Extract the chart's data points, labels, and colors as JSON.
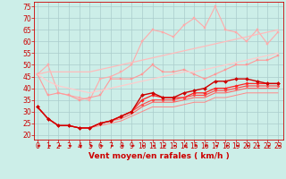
{
  "background_color": "#cceee8",
  "grid_color": "#aacccc",
  "xlabel": "Vent moyen/en rafales ( km/h )",
  "xlabel_color": "#cc0000",
  "xlabel_fontsize": 6.5,
  "xticks": [
    0,
    1,
    2,
    3,
    4,
    5,
    6,
    7,
    8,
    9,
    10,
    11,
    12,
    13,
    14,
    15,
    16,
    17,
    18,
    19,
    20,
    21,
    22,
    23
  ],
  "yticks": [
    20,
    25,
    30,
    35,
    40,
    45,
    50,
    55,
    60,
    65,
    70,
    75
  ],
  "ylim": [
    18,
    77
  ],
  "xlim": [
    -0.3,
    23.5
  ],
  "tick_color": "#cc0000",
  "tick_fontsize": 5.5,
  "series": [
    {
      "x": [
        0,
        1,
        2,
        3,
        4,
        5,
        6,
        7,
        8,
        9,
        10,
        11,
        12,
        13,
        14,
        15,
        16,
        17,
        18,
        19,
        20,
        21,
        22,
        23
      ],
      "y": [
        46,
        50,
        38,
        37,
        36,
        35,
        44,
        45,
        47,
        50,
        60,
        65,
        64,
        62,
        67,
        70,
        66,
        75,
        65,
        64,
        60,
        65,
        59,
        64
      ],
      "color": "#ffaaaa",
      "marker": "s",
      "markersize": 1.8,
      "linewidth": 0.8,
      "zorder": 2
    },
    {
      "x": [
        0,
        1,
        2,
        3,
        4,
        5,
        6,
        7,
        8,
        9,
        10,
        11,
        12,
        13,
        14,
        15,
        16,
        17,
        18,
        19,
        20,
        21,
        22,
        23
      ],
      "y": [
        46,
        47,
        47,
        47,
        47,
        47,
        48,
        49,
        50,
        51,
        52,
        53,
        54,
        55,
        56,
        57,
        58,
        59,
        60,
        61,
        62,
        63,
        64,
        65
      ],
      "color": "#ffbbbb",
      "marker": null,
      "markersize": 0,
      "linewidth": 0.9,
      "zorder": 2
    },
    {
      "x": [
        0,
        1,
        2,
        3,
        4,
        5,
        6,
        7,
        8,
        9,
        10,
        11,
        12,
        13,
        14,
        15,
        16,
        17,
        18,
        19,
        20,
        21,
        22,
        23
      ],
      "y": [
        46,
        37,
        38,
        37,
        35,
        36,
        37,
        44,
        44,
        44,
        46,
        50,
        47,
        47,
        48,
        46,
        44,
        46,
        48,
        50,
        50,
        52,
        52,
        54
      ],
      "color": "#ff9999",
      "marker": "s",
      "markersize": 1.8,
      "linewidth": 0.8,
      "zorder": 2
    },
    {
      "x": [
        0,
        1,
        2,
        3,
        4,
        5,
        6,
        7,
        8,
        9,
        10,
        11,
        12,
        13,
        14,
        15,
        16,
        17,
        18,
        19,
        20,
        21,
        22,
        23
      ],
      "y": [
        46,
        43,
        41,
        40,
        39,
        38,
        39,
        40,
        41,
        42,
        43,
        44,
        45,
        46,
        47,
        47,
        48,
        49,
        50,
        51,
        52,
        53,
        54,
        55
      ],
      "color": "#ffcccc",
      "marker": null,
      "markersize": 0,
      "linewidth": 0.9,
      "zorder": 2
    },
    {
      "x": [
        0,
        1,
        2,
        3,
        4,
        5,
        6,
        7,
        8,
        9,
        10,
        11,
        12,
        13,
        14,
        15,
        16,
        17,
        18,
        19,
        20,
        21,
        22,
        23
      ],
      "y": [
        32,
        27,
        24,
        24,
        23,
        23,
        25,
        26,
        28,
        30,
        37,
        38,
        36,
        36,
        38,
        39,
        40,
        43,
        43,
        44,
        44,
        43,
        42,
        42
      ],
      "color": "#cc0000",
      "marker": "D",
      "markersize": 2.0,
      "linewidth": 1.0,
      "zorder": 5
    },
    {
      "x": [
        0,
        1,
        2,
        3,
        4,
        5,
        6,
        7,
        8,
        9,
        10,
        11,
        12,
        13,
        14,
        15,
        16,
        17,
        18,
        19,
        20,
        21,
        22,
        23
      ],
      "y": [
        32,
        27,
        24,
        24,
        23,
        23,
        25,
        26,
        28,
        30,
        35,
        37,
        36,
        36,
        36,
        38,
        38,
        40,
        40,
        41,
        42,
        42,
        42,
        42
      ],
      "color": "#ff2222",
      "marker": "D",
      "markersize": 1.8,
      "linewidth": 0.9,
      "zorder": 4
    },
    {
      "x": [
        0,
        1,
        2,
        3,
        4,
        5,
        6,
        7,
        8,
        9,
        10,
        11,
        12,
        13,
        14,
        15,
        16,
        17,
        18,
        19,
        20,
        21,
        22,
        23
      ],
      "y": [
        32,
        27,
        24,
        24,
        23,
        23,
        25,
        26,
        28,
        30,
        33,
        35,
        35,
        35,
        36,
        37,
        37,
        39,
        39,
        40,
        41,
        41,
        41,
        41
      ],
      "color": "#ff4444",
      "marker": "D",
      "markersize": 1.5,
      "linewidth": 0.8,
      "zorder": 4
    },
    {
      "x": [
        0,
        1,
        2,
        3,
        4,
        5,
        6,
        7,
        8,
        9,
        10,
        11,
        12,
        13,
        14,
        15,
        16,
        17,
        18,
        19,
        20,
        21,
        22,
        23
      ],
      "y": [
        32,
        27,
        24,
        24,
        23,
        23,
        25,
        26,
        27,
        29,
        32,
        34,
        34,
        34,
        35,
        36,
        36,
        38,
        38,
        39,
        40,
        40,
        40,
        40
      ],
      "color": "#ff6666",
      "marker": null,
      "markersize": 0,
      "linewidth": 0.8,
      "zorder": 3
    },
    {
      "x": [
        0,
        1,
        2,
        3,
        4,
        5,
        6,
        7,
        8,
        9,
        10,
        11,
        12,
        13,
        14,
        15,
        16,
        17,
        18,
        19,
        20,
        21,
        22,
        23
      ],
      "y": [
        32,
        27,
        24,
        24,
        23,
        23,
        24,
        25,
        26,
        28,
        30,
        32,
        32,
        32,
        33,
        34,
        34,
        36,
        36,
        37,
        38,
        38,
        38,
        38
      ],
      "color": "#ff8888",
      "marker": null,
      "markersize": 0,
      "linewidth": 0.7,
      "zorder": 2
    }
  ],
  "arrow_color": "#cc0000"
}
